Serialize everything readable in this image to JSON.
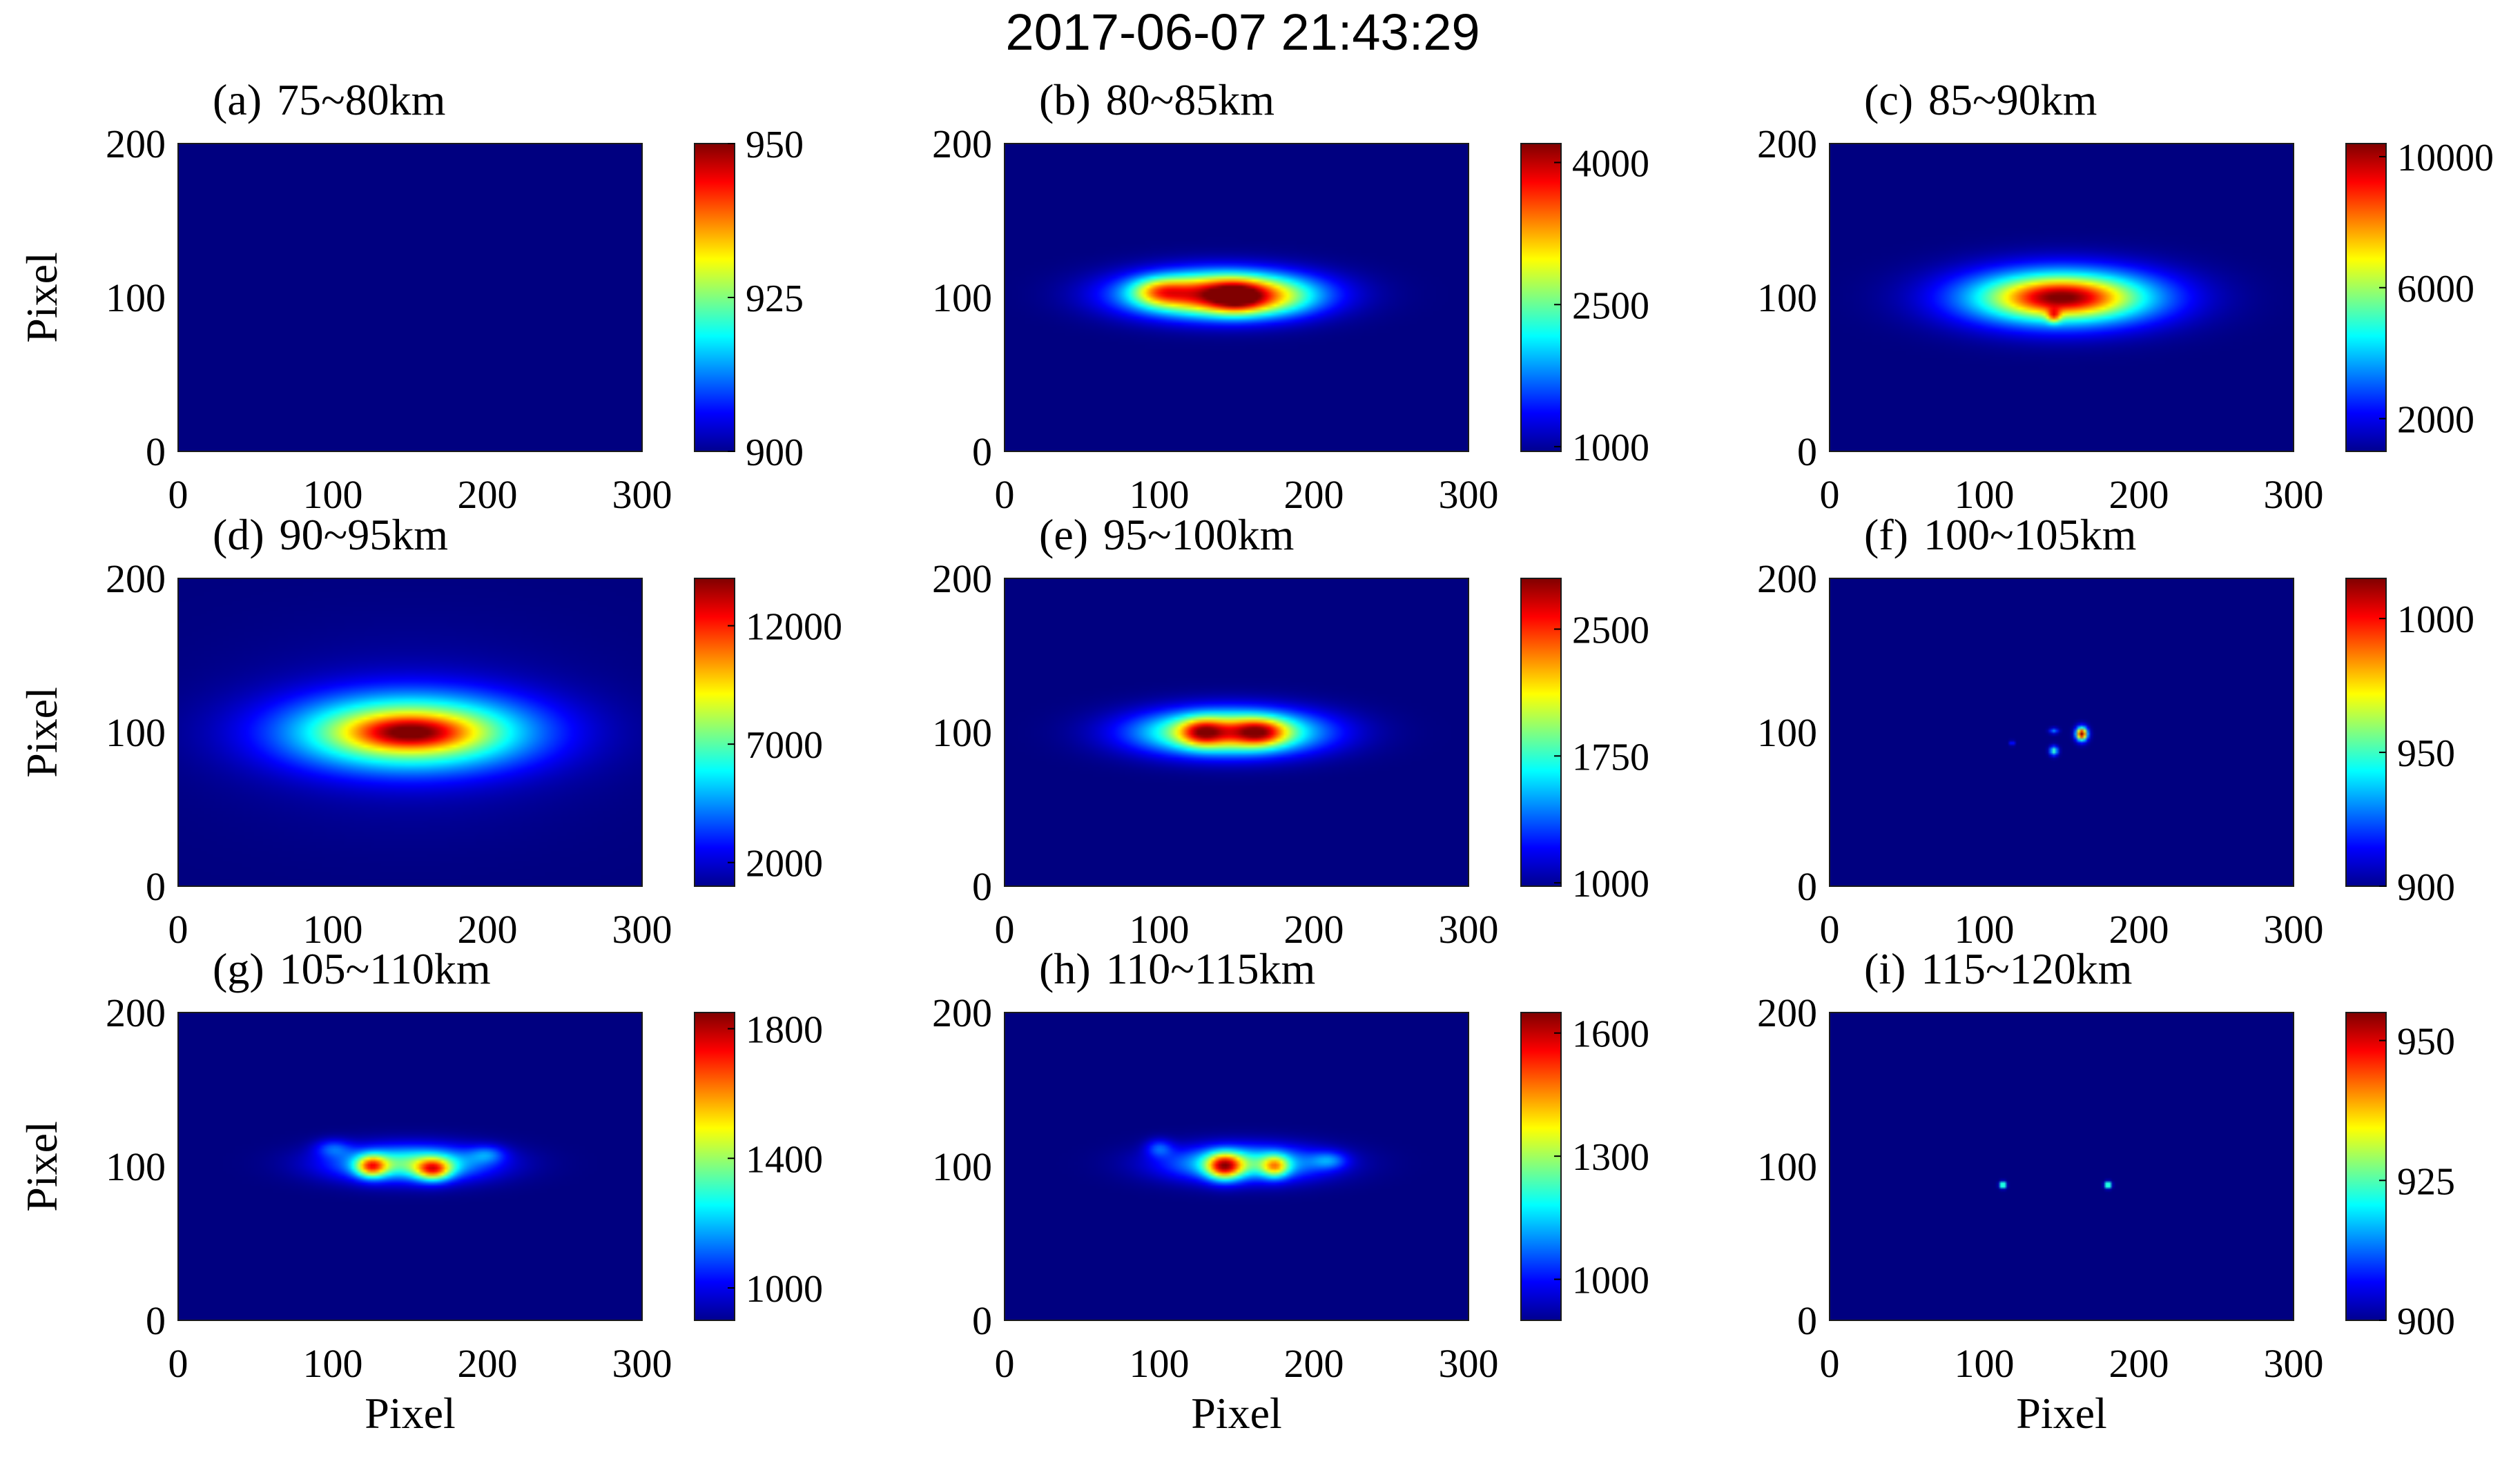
{
  "figure": {
    "title": "2017-06-07 21:43:29",
    "xlabel": "Pixel",
    "ylabel": "Pixel"
  },
  "chart_data": [
    {
      "type": "heatmap",
      "label": "(a)",
      "title": "75~80km",
      "xlim": [
        0,
        300
      ],
      "ylim": [
        0,
        200
      ],
      "xticks": [
        "0",
        "100",
        "200",
        "300"
      ],
      "yticks": [
        "0",
        "100",
        "200"
      ],
      "clim": [
        900,
        950
      ],
      "colorbar_ticks": [
        900,
        925,
        950
      ],
      "features": []
    },
    {
      "type": "heatmap",
      "label": "(b)",
      "title": "80~85km",
      "xlim": [
        0,
        300
      ],
      "ylim": [
        0,
        200
      ],
      "xticks": [
        "0",
        "100",
        "200",
        "300"
      ],
      "yticks": [
        "0",
        "100",
        "200"
      ],
      "clim": [
        950,
        4200
      ],
      "colorbar_ticks": [
        1000,
        2500,
        4000
      ],
      "features": [
        {
          "x": 140,
          "y": 102,
          "sx": 40,
          "sy": 10,
          "value": 3100
        },
        {
          "x": 100,
          "y": 104,
          "sx": 12,
          "sy": 6,
          "value": 900
        },
        {
          "x": 150,
          "y": 100,
          "sx": 12,
          "sy": 7,
          "value": 1000
        },
        {
          "x": 175,
          "y": 98,
          "sx": 18,
          "sy": 8,
          "value": 300
        }
      ]
    },
    {
      "type": "heatmap",
      "label": "(c)",
      "title": "85~90km",
      "xlim": [
        0,
        300
      ],
      "ylim": [
        0,
        200
      ],
      "xticks": [
        "0",
        "100",
        "200",
        "300"
      ],
      "yticks": [
        "0",
        "100",
        "200"
      ],
      "clim": [
        1000,
        10400
      ],
      "colorbar_ticks": [
        2000,
        6000,
        10000
      ],
      "features": [
        {
          "x": 150,
          "y": 100,
          "sx": 45,
          "sy": 13,
          "value": 6800
        },
        {
          "x": 150,
          "y": 100,
          "sx": 24,
          "sy": 7,
          "value": 2800
        },
        {
          "x": 145,
          "y": 88,
          "sx": 3,
          "sy": 3,
          "value": 3000
        }
      ]
    },
    {
      "type": "heatmap",
      "label": "(d)",
      "title": "90~95km",
      "xlim": [
        0,
        300
      ],
      "ylim": [
        0,
        200
      ],
      "xticks": [
        "0",
        "100",
        "200",
        "300"
      ],
      "yticks": [
        "0",
        "100",
        "200"
      ],
      "clim": [
        1000,
        14000
      ],
      "colorbar_ticks": [
        2000,
        7000,
        12000
      ],
      "features": [
        {
          "x": 150,
          "y": 100,
          "sx": 55,
          "sy": 17,
          "value": 8500
        },
        {
          "x": 150,
          "y": 100,
          "sx": 25,
          "sy": 7,
          "value": 4500
        },
        {
          "x": 150,
          "y": 100,
          "sx": 80,
          "sy": 40,
          "value": 700
        }
      ]
    },
    {
      "type": "heatmap",
      "label": "(e)",
      "title": "95~100km",
      "xlim": [
        0,
        300
      ],
      "ylim": [
        0,
        200
      ],
      "xticks": [
        "0",
        "100",
        "200",
        "300"
      ],
      "yticks": [
        "0",
        "100",
        "200"
      ],
      "clim": [
        980,
        2800
      ],
      "colorbar_ticks": [
        1000,
        1750,
        2500
      ],
      "features": [
        {
          "x": 145,
          "y": 100,
          "sx": 40,
          "sy": 10,
          "value": 1350
        },
        {
          "x": 128,
          "y": 100,
          "sx": 10,
          "sy": 6,
          "value": 650
        },
        {
          "x": 165,
          "y": 100,
          "sx": 12,
          "sy": 6,
          "value": 700
        }
      ]
    },
    {
      "type": "heatmap",
      "label": "(f)",
      "title": "100~105km",
      "xlim": [
        0,
        300
      ],
      "ylim": [
        0,
        200
      ],
      "xticks": [
        "0",
        "100",
        "200",
        "300"
      ],
      "yticks": [
        "0",
        "100",
        "200"
      ],
      "clim": [
        900,
        1015
      ],
      "colorbar_ticks": [
        900,
        950,
        1000
      ],
      "features": [
        {
          "x": 163,
          "y": 99,
          "sx": 2.5,
          "sy": 3,
          "value": 115
        },
        {
          "x": 145,
          "y": 88,
          "sx": 1.8,
          "sy": 2,
          "value": 55
        },
        {
          "x": 145,
          "y": 101,
          "sx": 2,
          "sy": 1.2,
          "value": 30
        },
        {
          "x": 118,
          "y": 93,
          "sx": 1,
          "sy": 1,
          "value": 25
        }
      ]
    },
    {
      "type": "heatmap",
      "label": "(g)",
      "title": "105~110km",
      "xlim": [
        0,
        300
      ],
      "ylim": [
        0,
        200
      ],
      "xticks": [
        "0",
        "100",
        "200",
        "300"
      ],
      "yticks": [
        "0",
        "100",
        "200"
      ],
      "clim": [
        900,
        1850
      ],
      "colorbar_ticks": [
        1000,
        1400,
        1800
      ],
      "features": [
        {
          "x": 150,
          "y": 102,
          "sx": 35,
          "sy": 8,
          "value": 450
        },
        {
          "x": 125,
          "y": 100,
          "sx": 7,
          "sy": 5,
          "value": 500
        },
        {
          "x": 165,
          "y": 98,
          "sx": 8,
          "sy": 5,
          "value": 500
        },
        {
          "x": 100,
          "y": 112,
          "sx": 8,
          "sy": 4,
          "value": 150
        },
        {
          "x": 200,
          "y": 108,
          "sx": 8,
          "sy": 4,
          "value": 150
        }
      ]
    },
    {
      "type": "heatmap",
      "label": "(h)",
      "title": "110~115km",
      "xlim": [
        0,
        300
      ],
      "ylim": [
        0,
        200
      ],
      "xticks": [
        "0",
        "100",
        "200",
        "300"
      ],
      "yticks": [
        "0",
        "100",
        "200"
      ],
      "clim": [
        900,
        1650
      ],
      "colorbar_ticks": [
        1000,
        1300,
        1600
      ],
      "features": [
        {
          "x": 155,
          "y": 102,
          "sx": 35,
          "sy": 8,
          "value": 330
        },
        {
          "x": 142,
          "y": 100,
          "sx": 8,
          "sy": 6,
          "value": 450
        },
        {
          "x": 175,
          "y": 100,
          "sx": 6,
          "sy": 5,
          "value": 300
        },
        {
          "x": 100,
          "y": 112,
          "sx": 6,
          "sy": 4,
          "value": 130
        },
        {
          "x": 210,
          "y": 104,
          "sx": 8,
          "sy": 4,
          "value": 130
        }
      ]
    },
    {
      "type": "heatmap",
      "label": "(i)",
      "title": "115~120km",
      "xlim": [
        0,
        300
      ],
      "ylim": [
        0,
        200
      ],
      "xticks": [
        "0",
        "100",
        "200",
        "300"
      ],
      "yticks": [
        "0",
        "100",
        "200"
      ],
      "clim": [
        900,
        955
      ],
      "colorbar_ticks": [
        900,
        925,
        950
      ],
      "features": [
        {
          "x": 112,
          "y": 88,
          "sx": 1.3,
          "sy": 1.3,
          "value": 40
        },
        {
          "x": 180,
          "y": 88,
          "sx": 1.3,
          "sy": 1.3,
          "value": 40
        }
      ]
    }
  ]
}
